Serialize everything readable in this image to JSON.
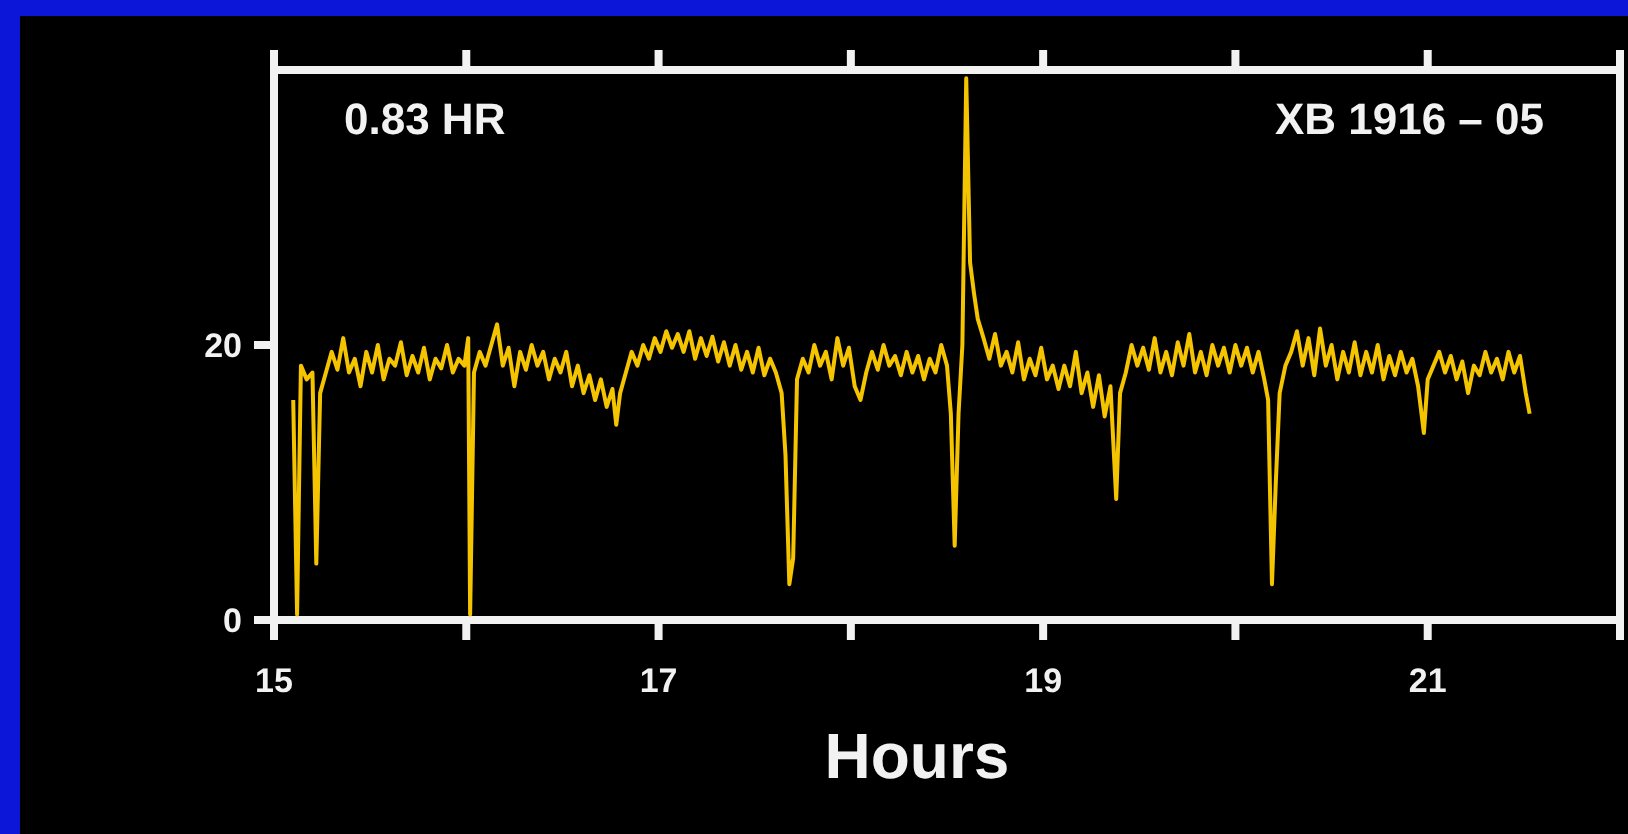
{
  "chart_data": {
    "type": "line",
    "xlabel": "Hours",
    "annotations": [
      "0.83 HR",
      "XB 1916 – 05"
    ],
    "xlim": [
      15,
      22
    ],
    "xticks": [
      15,
      {
        "value": 16,
        "label": null
      },
      17,
      {
        "value": 18,
        "label": null
      },
      19,
      {
        "value": 20,
        "label": null
      },
      21,
      {
        "value": 22,
        "label": null
      }
    ],
    "ylim": [
      0,
      40
    ],
    "yticks": [
      0,
      20
    ],
    "grid": false,
    "marker": "none",
    "line_style": "solid",
    "series": [
      {
        "color": "#f5c400",
        "x": [
          15.1,
          15.12,
          15.14,
          15.17,
          15.2,
          15.22,
          15.24,
          15.27,
          15.3,
          15.33,
          15.36,
          15.39,
          15.42,
          15.45,
          15.48,
          15.51,
          15.54,
          15.57,
          15.6,
          15.63,
          15.66,
          15.69,
          15.72,
          15.75,
          15.78,
          15.81,
          15.84,
          15.87,
          15.9,
          15.93,
          15.96,
          15.99,
          16.01,
          16.02,
          16.04,
          16.07,
          16.1,
          16.13,
          16.16,
          16.19,
          16.22,
          16.25,
          16.28,
          16.31,
          16.34,
          16.37,
          16.4,
          16.43,
          16.46,
          16.49,
          16.52,
          16.55,
          16.58,
          16.61,
          16.64,
          16.67,
          16.7,
          16.73,
          16.76,
          16.78,
          16.8,
          16.83,
          16.86,
          16.89,
          16.92,
          16.95,
          16.98,
          17.01,
          17.04,
          17.07,
          17.1,
          17.13,
          17.16,
          17.19,
          17.22,
          17.25,
          17.28,
          17.31,
          17.34,
          17.37,
          17.4,
          17.43,
          17.46,
          17.49,
          17.52,
          17.55,
          17.58,
          17.61,
          17.64,
          17.66,
          17.68,
          17.7,
          17.72,
          17.75,
          17.78,
          17.81,
          17.84,
          17.87,
          17.9,
          17.93,
          17.96,
          17.99,
          18.02,
          18.05,
          18.08,
          18.11,
          18.14,
          18.17,
          18.2,
          18.23,
          18.26,
          18.29,
          18.32,
          18.35,
          18.38,
          18.41,
          18.44,
          18.47,
          18.5,
          18.52,
          18.54,
          18.56,
          18.58,
          18.6,
          18.62,
          18.64,
          18.66,
          18.69,
          18.72,
          18.75,
          18.78,
          18.81,
          18.84,
          18.87,
          18.9,
          18.93,
          18.96,
          18.99,
          19.02,
          19.05,
          19.08,
          19.11,
          19.14,
          19.17,
          19.2,
          19.23,
          19.26,
          19.29,
          19.32,
          19.35,
          19.38,
          19.4,
          19.43,
          19.46,
          19.49,
          19.52,
          19.55,
          19.58,
          19.61,
          19.64,
          19.67,
          19.7,
          19.73,
          19.76,
          19.79,
          19.82,
          19.85,
          19.88,
          19.91,
          19.94,
          19.97,
          20.0,
          20.03,
          20.06,
          20.09,
          20.12,
          20.15,
          20.17,
          20.19,
          20.21,
          20.23,
          20.26,
          20.29,
          20.32,
          20.35,
          20.38,
          20.41,
          20.44,
          20.47,
          20.5,
          20.53,
          20.56,
          20.59,
          20.62,
          20.65,
          20.68,
          20.71,
          20.74,
          20.77,
          20.8,
          20.83,
          20.86,
          20.89,
          20.92,
          20.95,
          20.98,
          21.0,
          21.03,
          21.06,
          21.09,
          21.12,
          21.15,
          21.18,
          21.21,
          21.24,
          21.27,
          21.3,
          21.33,
          21.36,
          21.39,
          21.42,
          21.45,
          21.48,
          21.51,
          21.53
        ],
        "values": [
          16.0,
          0.4,
          18.5,
          17.5,
          18.0,
          4.1,
          16.5,
          18.0,
          19.5,
          18.2,
          20.5,
          18.0,
          19.0,
          17.0,
          19.5,
          18.0,
          20.0,
          17.5,
          19.0,
          18.5,
          20.2,
          17.8,
          19.2,
          18.0,
          19.8,
          17.5,
          19.0,
          18.3,
          20.0,
          18.0,
          19.0,
          18.5,
          20.5,
          0.4,
          18.0,
          19.5,
          18.5,
          20.0,
          21.5,
          18.5,
          19.8,
          17.0,
          19.5,
          18.2,
          20.0,
          18.5,
          19.5,
          17.5,
          19.0,
          18.0,
          19.5,
          17.0,
          18.5,
          16.5,
          17.8,
          16.0,
          17.5,
          15.5,
          16.8,
          14.2,
          16.5,
          18.0,
          19.5,
          18.5,
          20.0,
          19.0,
          20.5,
          19.5,
          21.0,
          19.8,
          20.8,
          19.5,
          21.0,
          19.0,
          20.5,
          19.2,
          20.6,
          18.8,
          20.2,
          18.5,
          20.0,
          18.2,
          19.5,
          18.0,
          19.8,
          17.8,
          19.0,
          18.0,
          16.5,
          12.0,
          2.6,
          4.5,
          17.5,
          19.0,
          18.0,
          20.0,
          18.5,
          19.5,
          17.5,
          20.5,
          18.5,
          19.8,
          17.0,
          16.0,
          18.0,
          19.5,
          18.2,
          20.0,
          18.5,
          19.2,
          17.8,
          19.5,
          18.0,
          19.2,
          17.5,
          19.0,
          18.0,
          20.0,
          18.5,
          15.0,
          5.4,
          15.0,
          20.0,
          39.4,
          26.0,
          23.8,
          21.9,
          20.5,
          19.0,
          20.8,
          18.5,
          19.5,
          18.0,
          20.2,
          17.5,
          19.0,
          17.8,
          19.8,
          17.5,
          18.5,
          16.8,
          18.5,
          17.0,
          19.5,
          16.5,
          18.0,
          15.5,
          17.8,
          14.8,
          17.0,
          8.8,
          16.5,
          18.0,
          20.0,
          18.5,
          19.8,
          18.2,
          20.5,
          18.0,
          19.5,
          17.8,
          20.2,
          18.5,
          20.8,
          18.0,
          19.5,
          17.8,
          20.0,
          18.5,
          19.8,
          18.0,
          20.0,
          18.5,
          19.8,
          18.0,
          19.5,
          17.5,
          16.0,
          2.6,
          10.0,
          16.5,
          18.5,
          19.5,
          21.0,
          18.5,
          20.5,
          17.8,
          21.2,
          18.5,
          20.0,
          17.5,
          19.5,
          18.0,
          20.2,
          17.8,
          19.5,
          18.0,
          20.0,
          17.5,
          19.2,
          17.8,
          19.5,
          18.0,
          19.0,
          17.0,
          13.6,
          17.5,
          18.5,
          19.5,
          18.0,
          19.2,
          17.5,
          18.8,
          16.5,
          18.5,
          17.8,
          19.5,
          18.0,
          19.0,
          17.5,
          19.5,
          18.0,
          19.2,
          16.5,
          15.0
        ]
      }
    ]
  }
}
